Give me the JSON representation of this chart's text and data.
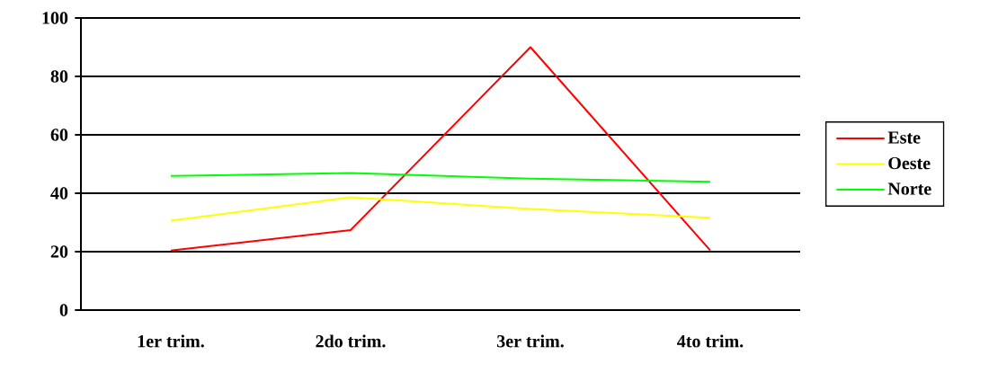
{
  "chart_data": {
    "type": "line",
    "categories": [
      "1er trim.",
      "2do trim.",
      "3er trim.",
      "4to trim."
    ],
    "series": [
      {
        "name": "Este",
        "color": "#ff0000",
        "values": [
          20.4,
          27.4,
          90,
          20.4
        ]
      },
      {
        "name": "Oeste",
        "color": "#ffff00",
        "values": [
          30.6,
          38.6,
          34.6,
          31.6
        ]
      },
      {
        "name": "Norte",
        "color": "#00ff00",
        "values": [
          45.9,
          46.9,
          45,
          43.9
        ]
      }
    ],
    "ylim": [
      0,
      100
    ],
    "yticks": [
      0,
      20,
      40,
      60,
      80,
      100
    ],
    "grid": "y",
    "legend": "right",
    "marker": "none",
    "line_style": "solid"
  }
}
